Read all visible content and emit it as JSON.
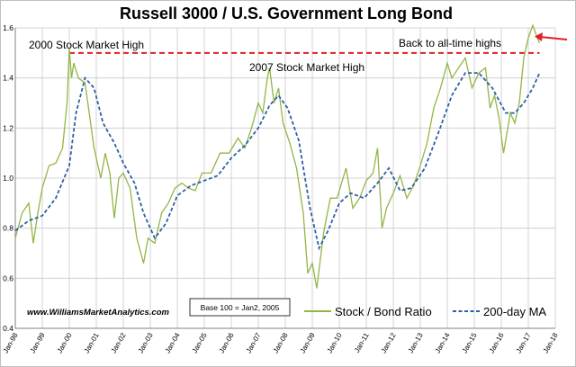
{
  "chart_data": {
    "type": "line",
    "title": "Russell 3000 / U.S. Government Long Bond",
    "xlabel": "",
    "ylabel": "",
    "ylim": [
      0.4,
      1.6
    ],
    "y_ticks": [
      "0.4",
      "0.6",
      "0.8",
      "1.0",
      "1.2",
      "1.4",
      "1.6"
    ],
    "x_range": [
      "1998-01",
      "2018-01"
    ],
    "x_ticks": [
      "Jan-98",
      "Jan-99",
      "Jan-00",
      "Jan-01",
      "Jan-02",
      "Jan-03",
      "Jan-04",
      "Jan-05",
      "Jan-06",
      "Jan-07",
      "Jan-08",
      "Jan-09",
      "Jan-10",
      "Jan-11",
      "Jan-12",
      "Jan-13",
      "Jan-14",
      "Jan-15",
      "Jan-16",
      "Jan-17",
      "Jan-18"
    ],
    "grid": true,
    "legend_position": "bottom-right",
    "series": [
      {
        "name": "Stock / Bond Ratio",
        "color": "#92b646",
        "style": "solid",
        "points": [
          [
            "1998-01",
            0.76
          ],
          [
            "1998-04",
            0.86
          ],
          [
            "1998-07",
            0.9
          ],
          [
            "1998-09",
            0.74
          ],
          [
            "1998-11",
            0.86
          ],
          [
            "1999-01",
            0.96
          ],
          [
            "1999-04",
            1.05
          ],
          [
            "1999-07",
            1.06
          ],
          [
            "1999-10",
            1.12
          ],
          [
            "1999-12",
            1.3
          ],
          [
            "2000-01",
            1.52
          ],
          [
            "2000-02",
            1.4
          ],
          [
            "2000-03",
            1.46
          ],
          [
            "2000-05",
            1.4
          ],
          [
            "2000-08",
            1.38
          ],
          [
            "2000-10",
            1.25
          ],
          [
            "2000-12",
            1.12
          ],
          [
            "2001-03",
            1.0
          ],
          [
            "2001-05",
            1.1
          ],
          [
            "2001-07",
            1.02
          ],
          [
            "2001-09",
            0.84
          ],
          [
            "2001-11",
            1.0
          ],
          [
            "2002-01",
            1.02
          ],
          [
            "2002-04",
            0.96
          ],
          [
            "2002-07",
            0.76
          ],
          [
            "2002-10",
            0.66
          ],
          [
            "2002-12",
            0.76
          ],
          [
            "2003-03",
            0.74
          ],
          [
            "2003-06",
            0.86
          ],
          [
            "2003-09",
            0.9
          ],
          [
            "2003-12",
            0.96
          ],
          [
            "2004-03",
            0.98
          ],
          [
            "2004-06",
            0.96
          ],
          [
            "2004-09",
            0.95
          ],
          [
            "2004-12",
            1.02
          ],
          [
            "2005-04",
            1.02
          ],
          [
            "2005-08",
            1.1
          ],
          [
            "2005-12",
            1.1
          ],
          [
            "2006-04",
            1.16
          ],
          [
            "2006-07",
            1.12
          ],
          [
            "2006-10",
            1.2
          ],
          [
            "2007-01",
            1.3
          ],
          [
            "2007-03",
            1.26
          ],
          [
            "2007-05",
            1.4
          ],
          [
            "2007-06",
            1.44
          ],
          [
            "2007-08",
            1.3
          ],
          [
            "2007-10",
            1.36
          ],
          [
            "2007-12",
            1.22
          ],
          [
            "2008-03",
            1.14
          ],
          [
            "2008-06",
            1.04
          ],
          [
            "2008-09",
            0.86
          ],
          [
            "2008-11",
            0.62
          ],
          [
            "2009-01",
            0.66
          ],
          [
            "2009-03",
            0.56
          ],
          [
            "2009-06",
            0.78
          ],
          [
            "2009-09",
            0.92
          ],
          [
            "2009-12",
            0.92
          ],
          [
            "2010-04",
            1.04
          ],
          [
            "2010-07",
            0.88
          ],
          [
            "2010-10",
            0.92
          ],
          [
            "2011-01",
            0.99
          ],
          [
            "2011-04",
            1.02
          ],
          [
            "2011-06",
            1.12
          ],
          [
            "2011-08",
            0.8
          ],
          [
            "2011-10",
            0.88
          ],
          [
            "2012-01",
            0.94
          ],
          [
            "2012-04",
            1.01
          ],
          [
            "2012-07",
            0.92
          ],
          [
            "2012-10",
            0.97
          ],
          [
            "2013-01",
            1.05
          ],
          [
            "2013-04",
            1.14
          ],
          [
            "2013-07",
            1.28
          ],
          [
            "2013-10",
            1.36
          ],
          [
            "2014-01",
            1.46
          ],
          [
            "2014-03",
            1.4
          ],
          [
            "2014-06",
            1.44
          ],
          [
            "2014-09",
            1.48
          ],
          [
            "2014-12",
            1.36
          ],
          [
            "2015-03",
            1.42
          ],
          [
            "2015-06",
            1.44
          ],
          [
            "2015-08",
            1.28
          ],
          [
            "2015-10",
            1.33
          ],
          [
            "2015-12",
            1.24
          ],
          [
            "2016-02",
            1.1
          ],
          [
            "2016-05",
            1.26
          ],
          [
            "2016-07",
            1.22
          ],
          [
            "2016-09",
            1.3
          ],
          [
            "2016-11",
            1.48
          ],
          [
            "2017-01",
            1.56
          ],
          [
            "2017-03",
            1.61
          ],
          [
            "2017-05",
            1.56
          ],
          [
            "2017-06",
            1.54
          ]
        ]
      },
      {
        "name": "200-day MA",
        "color": "#2e5fa5",
        "style": "dashed",
        "points": [
          [
            "1998-01",
            0.79
          ],
          [
            "1998-07",
            0.83
          ],
          [
            "1999-01",
            0.85
          ],
          [
            "1999-07",
            0.92
          ],
          [
            "2000-01",
            1.05
          ],
          [
            "2000-04",
            1.26
          ],
          [
            "2000-08",
            1.4
          ],
          [
            "2000-12",
            1.36
          ],
          [
            "2001-04",
            1.22
          ],
          [
            "2001-09",
            1.14
          ],
          [
            "2002-01",
            1.06
          ],
          [
            "2002-06",
            0.98
          ],
          [
            "2002-10",
            0.86
          ],
          [
            "2003-03",
            0.76
          ],
          [
            "2003-08",
            0.82
          ],
          [
            "2004-01",
            0.93
          ],
          [
            "2004-07",
            0.97
          ],
          [
            "2005-01",
            0.99
          ],
          [
            "2005-07",
            1.01
          ],
          [
            "2006-01",
            1.08
          ],
          [
            "2006-07",
            1.13
          ],
          [
            "2007-01",
            1.2
          ],
          [
            "2007-06",
            1.29
          ],
          [
            "2007-10",
            1.33
          ],
          [
            "2008-02",
            1.28
          ],
          [
            "2008-07",
            1.15
          ],
          [
            "2008-12",
            0.88
          ],
          [
            "2009-04",
            0.72
          ],
          [
            "2009-08",
            0.79
          ],
          [
            "2010-01",
            0.9
          ],
          [
            "2010-06",
            0.94
          ],
          [
            "2010-12",
            0.92
          ],
          [
            "2011-06",
            0.98
          ],
          [
            "2011-11",
            1.04
          ],
          [
            "2012-04",
            0.95
          ],
          [
            "2012-09",
            0.96
          ],
          [
            "2013-03",
            1.04
          ],
          [
            "2013-09",
            1.18
          ],
          [
            "2014-03",
            1.33
          ],
          [
            "2014-09",
            1.42
          ],
          [
            "2015-03",
            1.42
          ],
          [
            "2015-09",
            1.36
          ],
          [
            "2016-03",
            1.26
          ],
          [
            "2016-07",
            1.26
          ],
          [
            "2016-11",
            1.3
          ],
          [
            "2017-03",
            1.36
          ],
          [
            "2017-06",
            1.42
          ]
        ]
      }
    ],
    "reference_line": {
      "y": 1.5,
      "from": "2000-01",
      "to": "2017-06",
      "color": "#e0202a",
      "style": "dashed"
    },
    "annotations": [
      {
        "text": "2000 Stock Market High"
      },
      {
        "text": "2007 Stock Market High"
      },
      {
        "text": "Back to all-time highs"
      }
    ],
    "source_text": "www.WilliamsMarketAnalytics.com",
    "base_note": "Base 100 = Jan2, 2005"
  }
}
